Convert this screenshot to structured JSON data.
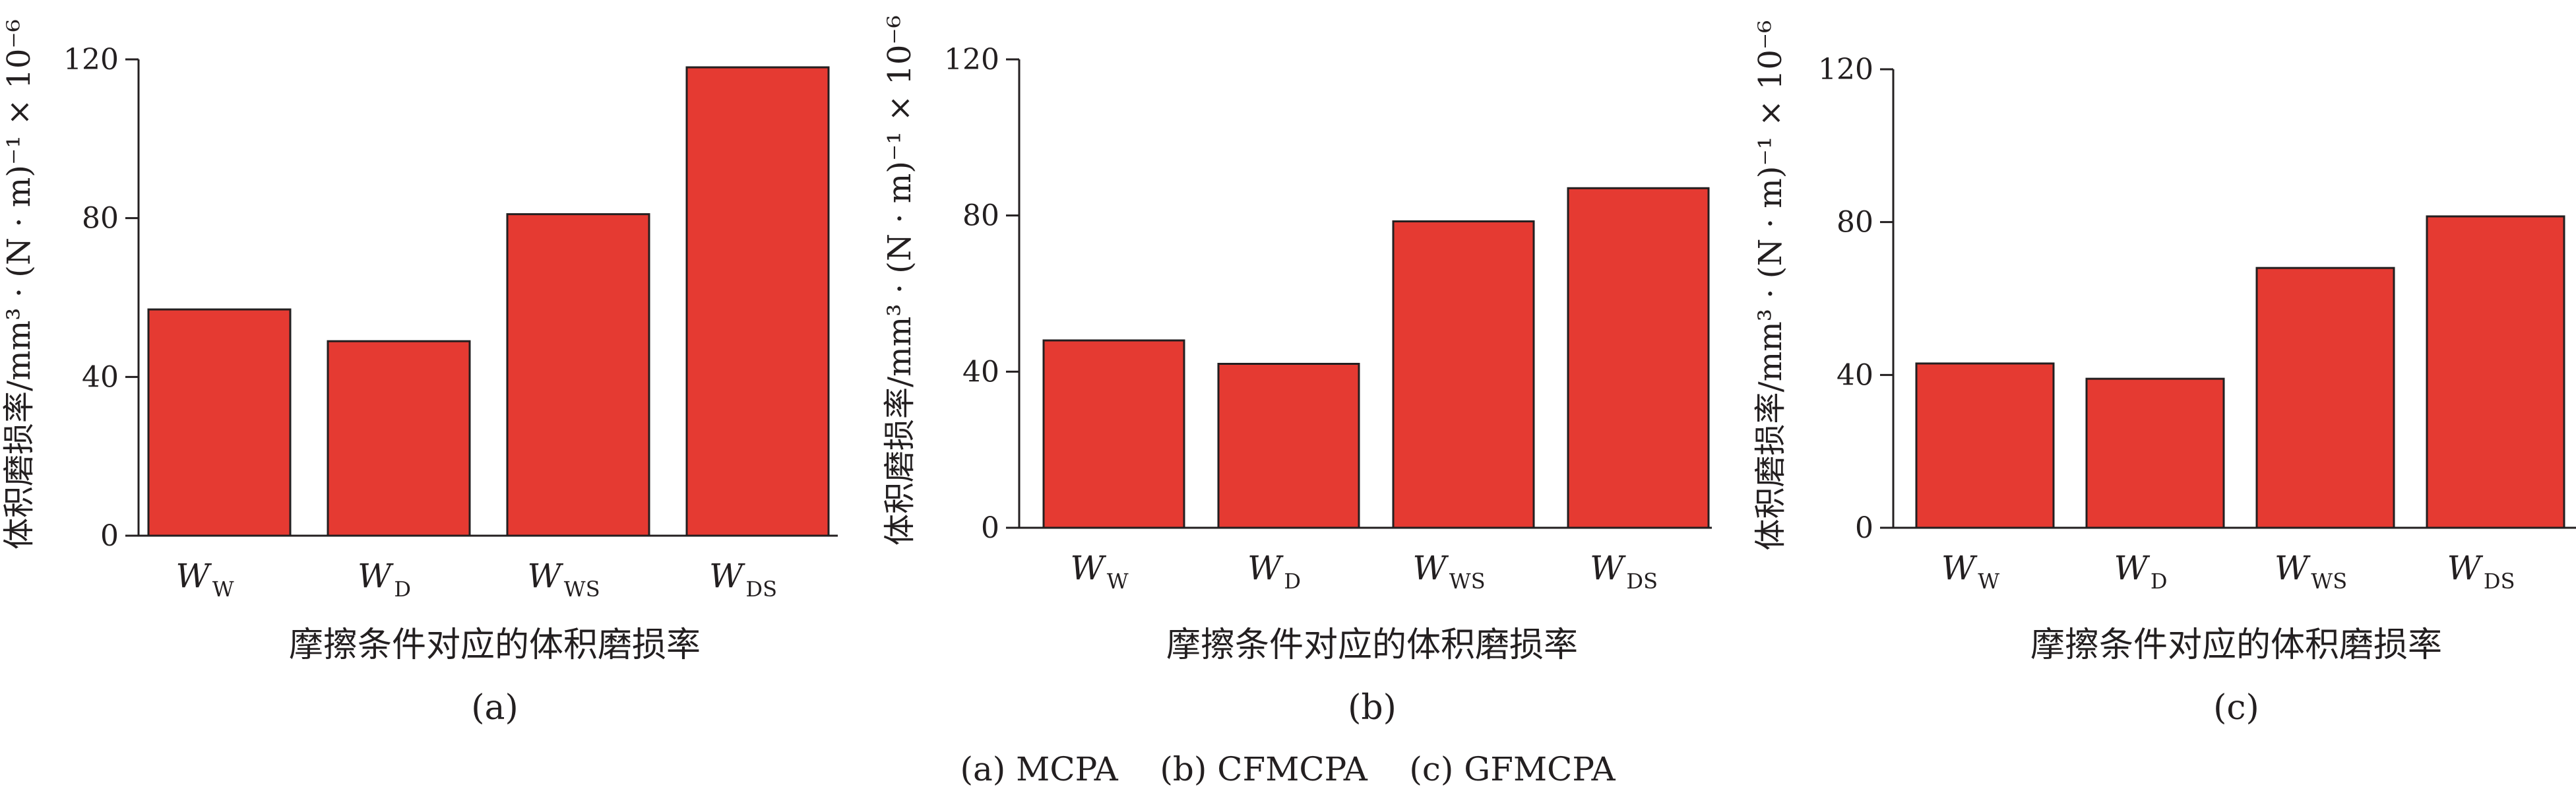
{
  "chart_data": [
    {
      "type": "bar",
      "caption": "(a)",
      "categories": [
        {
          "main": "W",
          "sub": "W"
        },
        {
          "main": "W",
          "sub": "D"
        },
        {
          "main": "W",
          "sub": "WS"
        },
        {
          "main": "W",
          "sub": "DS"
        }
      ],
      "values": [
        57,
        49,
        81,
        118
      ],
      "ylim": [
        0,
        120
      ],
      "yticks": [
        "0",
        "40",
        "80",
        "120"
      ],
      "ylabel": "体积磨损率/mm³ · (N · m)⁻¹ × 10⁻⁶",
      "xlabel": "摩擦条件对应的体积磨损率",
      "color": "#e53a32"
    },
    {
      "type": "bar",
      "caption": "(b)",
      "categories": [
        {
          "main": "W",
          "sub": "W"
        },
        {
          "main": "W",
          "sub": "D"
        },
        {
          "main": "W",
          "sub": "WS"
        },
        {
          "main": "W",
          "sub": "DS"
        }
      ],
      "values": [
        48,
        42,
        78.5,
        87
      ],
      "ylim": [
        0,
        120
      ],
      "yticks": [
        "0",
        "40",
        "80",
        "120"
      ],
      "ylabel": "体积磨损率/mm³ · (N · m)⁻¹ × 10⁻⁶",
      "xlabel": "摩擦条件对应的体积磨损率",
      "color": "#e53a32"
    },
    {
      "type": "bar",
      "caption": "(c)",
      "categories": [
        {
          "main": "W",
          "sub": "W"
        },
        {
          "main": "W",
          "sub": "D"
        },
        {
          "main": "W",
          "sub": "WS"
        },
        {
          "main": "W",
          "sub": "DS"
        }
      ],
      "values": [
        43,
        39,
        68,
        81.5
      ],
      "ylim": [
        0,
        120
      ],
      "yticks": [
        "0",
        "40",
        "80",
        "120"
      ],
      "ylabel": "体积磨损率/mm³ · (N · m)⁻¹ × 10⁻⁶",
      "xlabel": "摩擦条件对应的体积磨损率",
      "color": "#e53a32"
    }
  ],
  "legend_caption": "(a) MCPA    (b) CFMCPA    (c) GFMCPA"
}
